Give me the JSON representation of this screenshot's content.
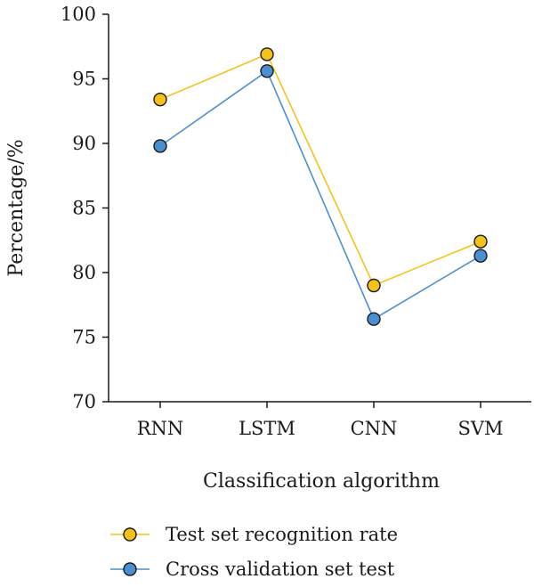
{
  "chart_data": {
    "type": "line",
    "title": "",
    "xlabel": "Classification algorithm",
    "ylabel": "Percentage/%",
    "categories": [
      "RNN",
      "LSTM",
      "CNN",
      "SVM"
    ],
    "ylim": [
      70,
      100
    ],
    "yticks": [
      70,
      75,
      80,
      85,
      90,
      95,
      100
    ],
    "grid": false,
    "legend_position": "bottom",
    "series": [
      {
        "name": "Test set recognition rate",
        "color": "#f5c21b",
        "marker_fill": "#f5c21b",
        "values": [
          93.4,
          96.9,
          79.0,
          82.4
        ]
      },
      {
        "name": "Cross validation set test",
        "color": "#4a90d0",
        "marker_fill": "#4a90d0",
        "values": [
          89.8,
          95.6,
          76.4,
          81.3
        ]
      }
    ]
  }
}
